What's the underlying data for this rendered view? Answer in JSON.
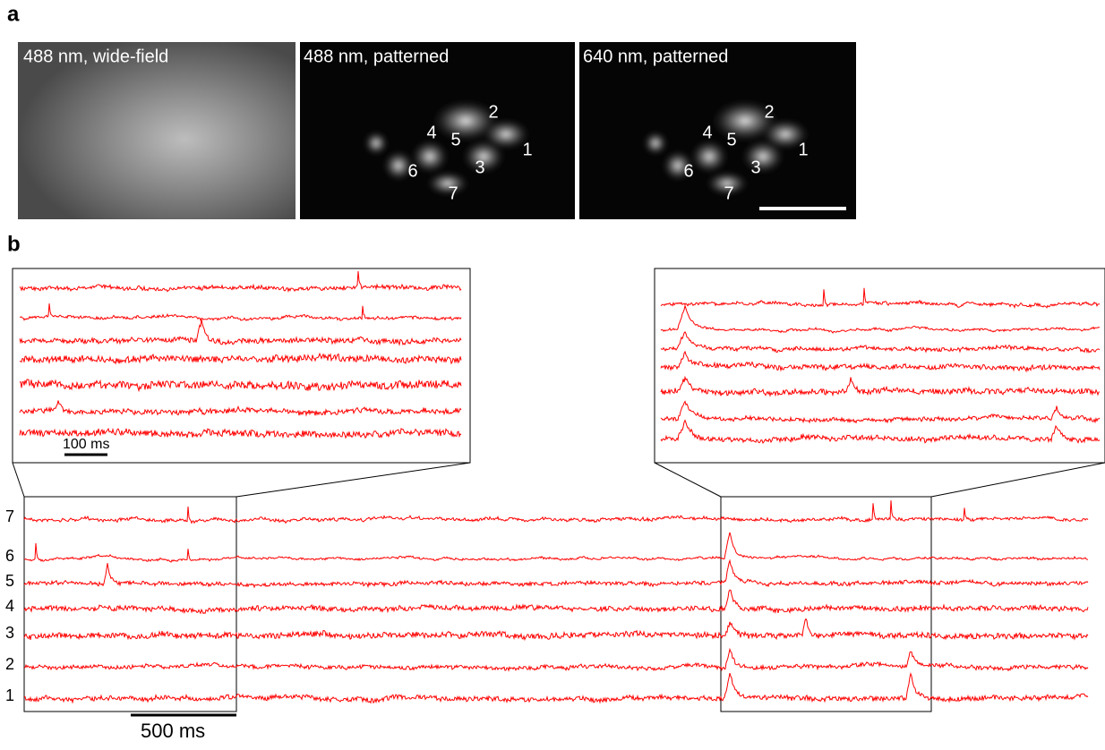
{
  "panel_a": {
    "label": "a",
    "images": [
      {
        "caption": "488 nm, wide-field"
      },
      {
        "caption": "488 nm, patterned",
        "cells": [
          "1",
          "2",
          "3",
          "4",
          "5",
          "6",
          "7"
        ]
      },
      {
        "caption": "640 nm, patterned",
        "cells": [
          "1",
          "2",
          "3",
          "4",
          "5",
          "6",
          "7"
        ]
      }
    ]
  },
  "panel_b": {
    "label": "b",
    "trace_labels": [
      "7",
      "6",
      "5",
      "4",
      "3",
      "2",
      "1"
    ],
    "inset_scale": "100 ms",
    "scale": "500 ms"
  }
}
